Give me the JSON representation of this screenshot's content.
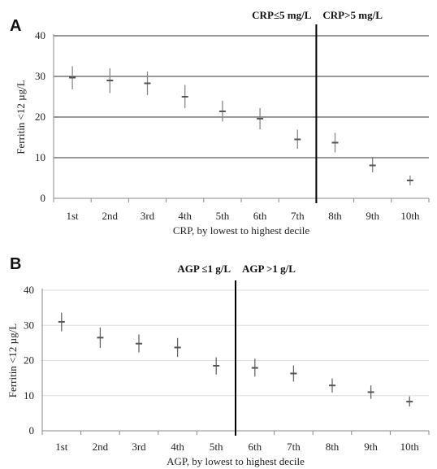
{
  "chart_data": [
    {
      "type": "scatter",
      "panel_label": "A",
      "categories": [
        "1st",
        "2nd",
        "3rd",
        "4th",
        "5th",
        "6th",
        "7th",
        "8th",
        "9th",
        "10th"
      ],
      "series": [
        {
          "values": [
            29.7,
            29.0,
            28.3,
            25.0,
            21.4,
            19.6,
            14.5,
            13.7,
            8.1,
            4.4
          ],
          "error_low": [
            26.8,
            25.9,
            25.4,
            22.2,
            18.9,
            17.0,
            12.2,
            11.3,
            6.4,
            3.2
          ],
          "error_high": [
            32.5,
            32.0,
            31.2,
            27.9,
            24.0,
            22.2,
            16.9,
            16.1,
            9.9,
            5.6
          ]
        }
      ],
      "ylabel": "Ferritin <12 µg/L",
      "xlabel": "CRP, by lowest to highest decile",
      "ylim": [
        0,
        40
      ],
      "yticks": [
        0,
        10,
        20,
        30,
        40
      ],
      "grid": true,
      "divider_after_category": "7th",
      "region_labels": [
        "CRP≤5 mg/L",
        "CRP>5 mg/L"
      ]
    },
    {
      "type": "scatter",
      "panel_label": "B",
      "categories": [
        "1st",
        "2nd",
        "3rd",
        "4th",
        "5th",
        "6th",
        "7th",
        "8th",
        "9th",
        "10th"
      ],
      "series": [
        {
          "values": [
            31.0,
            26.5,
            24.8,
            23.7,
            18.5,
            17.9,
            16.3,
            12.9,
            11.0,
            8.3
          ],
          "error_low": [
            28.3,
            23.6,
            22.3,
            21.0,
            16.0,
            15.4,
            14.0,
            10.9,
            9.1,
            6.9
          ],
          "error_high": [
            33.6,
            29.4,
            27.4,
            26.4,
            20.9,
            20.5,
            18.6,
            14.9,
            12.9,
            9.8
          ]
        }
      ],
      "ylabel": "Ferritin <12 µg/L",
      "xlabel": "AGP, by lowest to highest decile",
      "ylim": [
        0,
        40
      ],
      "yticks": [
        0,
        10,
        20,
        30,
        40
      ],
      "grid": true,
      "divider_after_category": "5th",
      "region_labels": [
        "AGP ≤1 g/L",
        "AGP >1 g/L"
      ]
    }
  ]
}
